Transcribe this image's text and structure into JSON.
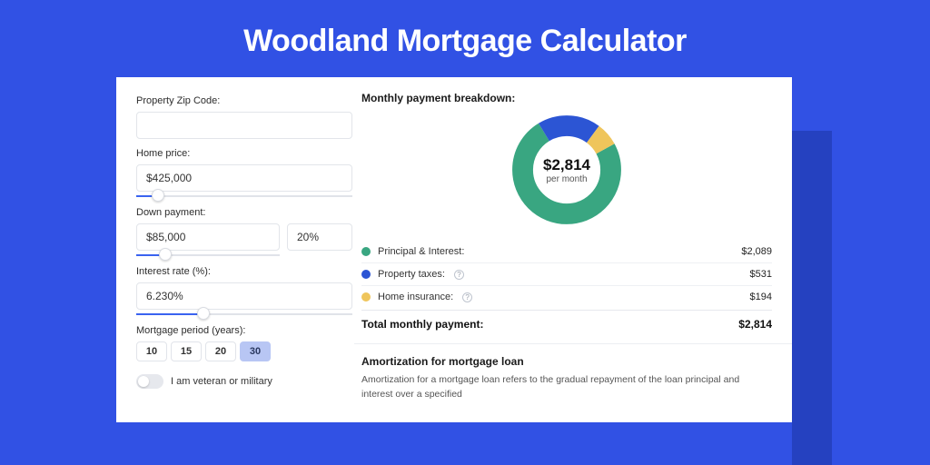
{
  "page": {
    "title": "Woodland Mortgage Calculator",
    "background_color": "#3151e4",
    "backdrop_color": "#2541c0",
    "card_background": "#ffffff"
  },
  "inputs": {
    "zip": {
      "label": "Property Zip Code:",
      "value": ""
    },
    "home_price": {
      "label": "Home price:",
      "value": "$425,000",
      "slider_percent": 10
    },
    "down_payment": {
      "label": "Down payment:",
      "amount": "$85,000",
      "percent": "20%",
      "slider_percent": 20
    },
    "interest_rate": {
      "label": "Interest rate (%):",
      "value": "6.230%",
      "slider_percent": 31
    },
    "mortgage_period": {
      "label": "Mortgage period (years):",
      "options": [
        "10",
        "15",
        "20",
        "30"
      ],
      "selected": "30"
    },
    "veteran": {
      "label": "I am veteran or military",
      "on": false
    }
  },
  "breakdown": {
    "title": "Monthly payment breakdown:",
    "donut": {
      "center_value": "$2,814",
      "center_label": "per month",
      "segments": [
        {
          "key": "pi",
          "fraction": 0.742,
          "color": "#39a681"
        },
        {
          "key": "tax",
          "fraction": 0.189,
          "color": "#2c55d4"
        },
        {
          "key": "ins",
          "fraction": 0.069,
          "color": "#efc55b"
        }
      ]
    },
    "items": [
      {
        "dot_color": "#39a681",
        "label": "Principal & Interest:",
        "value": "$2,089",
        "help": false
      },
      {
        "dot_color": "#2c55d4",
        "label": "Property taxes:",
        "value": "$531",
        "help": true
      },
      {
        "dot_color": "#efc55b",
        "label": "Home insurance:",
        "value": "$194",
        "help": true
      }
    ],
    "total": {
      "label": "Total monthly payment:",
      "value": "$2,814"
    }
  },
  "amortization": {
    "title": "Amortization for mortgage loan",
    "text": "Amortization for a mortgage loan refers to the gradual repayment of the loan principal and interest over a specified"
  }
}
